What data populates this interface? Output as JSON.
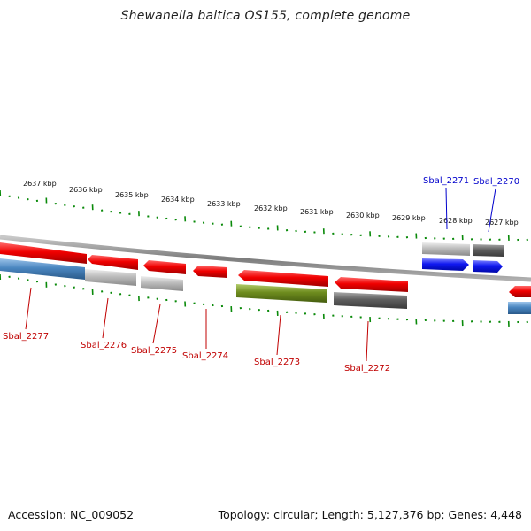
{
  "title": "Shewanella baltica OS155, complete genome",
  "accession_text": "Accession: NC_009052",
  "summary_text": "Topology: circular; Length: 5,127,376 bp; Genes: 4,448",
  "colors": {
    "tick": "#0a8a0a",
    "backbone": "#8a8a8a",
    "label_red": "#c00000",
    "label_blue": "#0000cc",
    "red": "#e60000",
    "steel": "#4a86c0",
    "lightgray": "#b9b9b9",
    "darkgray": "#646464",
    "olive": "#6e8c1e",
    "blue": "#0a10ee"
  },
  "ruler": {
    "labels": [
      "2637 kbp",
      "2636 kbp",
      "2635 kbp",
      "2634 kbp",
      "2633 kbp",
      "2632 kbp",
      "2631 kbp",
      "2630 kbp",
      "2629 kbp",
      "2628 kbp",
      "2627 kbp"
    ]
  },
  "gene_labels": {
    "sbal_2271": "Sbal_2271",
    "sbal_2270": "Sbal_2270",
    "sbal_2277": "Sbal_2277",
    "sbal_2276": "Sbal_2276",
    "sbal_2275": "Sbal_2275",
    "sbal_2274": "Sbal_2274",
    "sbal_2273": "Sbal_2273",
    "sbal_2272": "Sbal_2272"
  }
}
